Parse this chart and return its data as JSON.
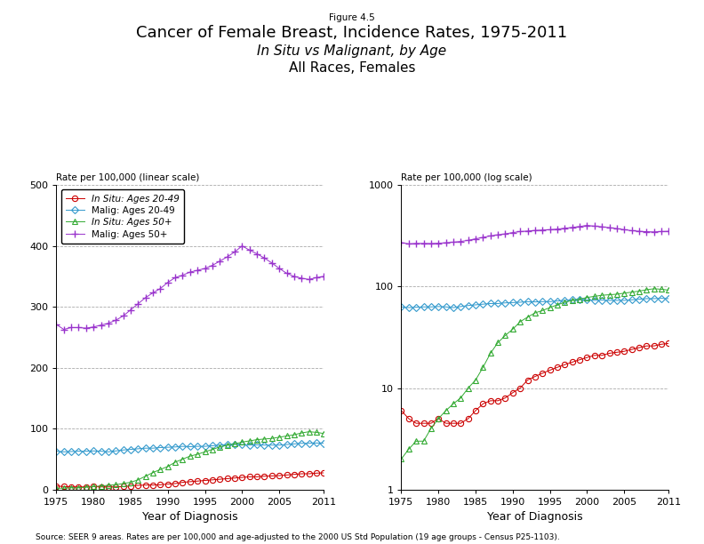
{
  "years": [
    1975,
    1976,
    1977,
    1978,
    1979,
    1980,
    1981,
    1982,
    1983,
    1984,
    1985,
    1986,
    1987,
    1988,
    1989,
    1990,
    1991,
    1992,
    1993,
    1994,
    1995,
    1996,
    1997,
    1998,
    1999,
    2000,
    2001,
    2002,
    2003,
    2004,
    2005,
    2006,
    2007,
    2008,
    2009,
    2010,
    2011
  ],
  "insitu_20_49": [
    6.0,
    5.0,
    4.5,
    4.5,
    4.5,
    5.0,
    4.5,
    4.5,
    4.5,
    5.0,
    6.0,
    7.0,
    7.5,
    7.5,
    8.0,
    9.0,
    10.0,
    12.0,
    13.0,
    14.0,
    15.0,
    16.0,
    17.0,
    18.0,
    19.0,
    20.0,
    21.0,
    21.0,
    22.0,
    22.5,
    23.0,
    24.0,
    25.0,
    26.0,
    26.0,
    27.0,
    27.5
  ],
  "malig_20_49": [
    63.0,
    62.0,
    62.5,
    63.0,
    63.0,
    63.5,
    63.0,
    62.0,
    63.5,
    65.0,
    66.0,
    67.0,
    68.0,
    68.0,
    69.0,
    69.5,
    70.0,
    71.0,
    70.5,
    71.0,
    71.0,
    72.0,
    73.0,
    74.0,
    74.0,
    74.0,
    73.0,
    73.5,
    73.0,
    73.0,
    73.0,
    74.0,
    75.0,
    76.0,
    76.0,
    76.5,
    76.0
  ],
  "insitu_50plus": [
    2.0,
    2.5,
    3.0,
    3.0,
    4.0,
    5.0,
    6.0,
    7.0,
    8.0,
    10.0,
    12.0,
    16.0,
    22.0,
    28.0,
    33.0,
    38.0,
    45.0,
    50.0,
    55.0,
    58.0,
    62.0,
    66.0,
    70.0,
    73.0,
    75.0,
    78.0,
    80.0,
    82.0,
    83.0,
    84.0,
    86.0,
    88.0,
    90.0,
    93.0,
    95.0,
    94.0,
    92.0
  ],
  "malig_50plus": [
    271.0,
    263.0,
    266.0,
    266.0,
    265.0,
    267.0,
    270.0,
    273.0,
    278.0,
    285.0,
    295.0,
    305.0,
    315.0,
    323.0,
    330.0,
    340.0,
    348.0,
    352.0,
    357.0,
    360.0,
    363.0,
    368.0,
    375.0,
    382.0,
    390.0,
    400.0,
    393.0,
    387.0,
    380.0,
    372.0,
    363.0,
    355.0,
    350.0,
    347.0,
    345.0,
    348.0,
    350.0
  ],
  "insitu_20_49_color": "#cc0000",
  "malig_20_49_color": "#3399cc",
  "insitu_50plus_color": "#33aa33",
  "malig_50plus_color": "#9933cc",
  "title_fig": "Figure 4.5",
  "title_line1": "Cancer of Female Breast, Incidence Rates, 1975-2011",
  "title_line2": "In Situ vs Malignant, by Age",
  "title_line3": "All Races, Females",
  "ylabel_linear": "Rate per 100,000 (linear scale)",
  "ylabel_log": "Rate per 100,000 (log scale)",
  "xlabel": "Year of Diagnosis",
  "source": "Source: SEER 9 areas. Rates are per 100,000 and age-adjusted to the 2000 US Std Population (19 age groups - Census P25-1103).",
  "legend_labels": [
    "In Situ: Ages 20-49",
    "Malig: Ages 20-49",
    "In Situ: Ages 50+",
    "Malig: Ages 50+"
  ],
  "linear_ylim": [
    0,
    500
  ],
  "linear_yticks": [
    0,
    100,
    200,
    300,
    400,
    500
  ],
  "log_ylim": [
    1,
    1000
  ],
  "log_yticks": [
    1,
    10,
    100,
    1000
  ],
  "xticks": [
    1975,
    1980,
    1985,
    1990,
    1995,
    2000,
    2005,
    2011
  ]
}
